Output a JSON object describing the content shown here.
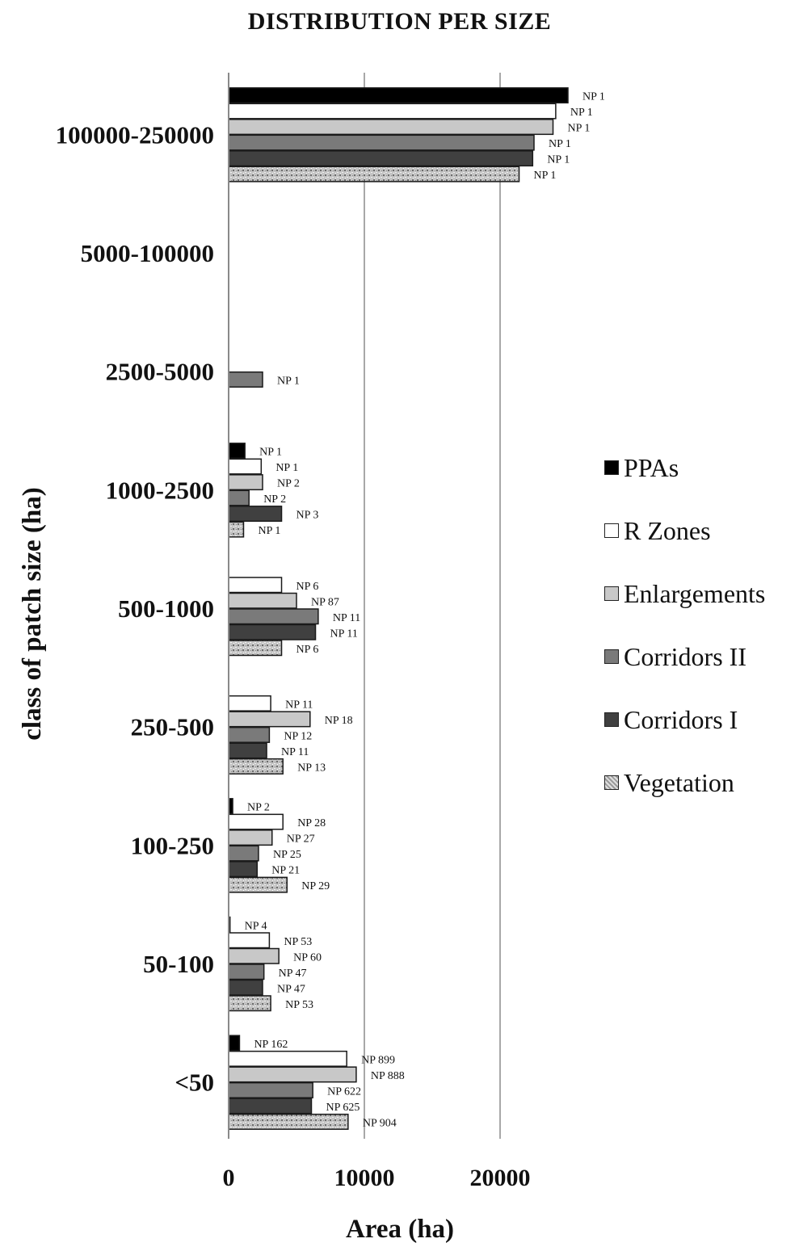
{
  "chart_data": {
    "type": "bar",
    "orientation": "horizontal",
    "title": "DISTRIBUTION PER SIZE",
    "xlabel": "Area  (ha)",
    "ylabel": "class of patch size (ha)",
    "xlim": [
      0,
      25000
    ],
    "xticks": [
      "0",
      "10000",
      "20000"
    ],
    "xtick_values": [
      0,
      10000,
      20000
    ],
    "grid": "vertical",
    "legend_position": "right",
    "categories": [
      "100000-250000",
      "5000-100000",
      "2500-5000",
      "1000-2500",
      "500-1000",
      "250-500",
      "100-250",
      "50-100",
      "<50"
    ],
    "series": [
      {
        "name": "PPAs",
        "color": "#000000",
        "pattern": "solid",
        "values": [
          25000,
          0,
          0,
          1200,
          0,
          0,
          300,
          100,
          800
        ],
        "labels": [
          "NP 1",
          "",
          "",
          "NP 1",
          "",
          "",
          "NP 2",
          "NP 4",
          "NP 162"
        ]
      },
      {
        "name": "R Zones",
        "color": "#ffffff",
        "pattern": "solid",
        "values": [
          24100,
          0,
          0,
          2400,
          3900,
          3100,
          4000,
          3000,
          8700
        ],
        "labels": [
          "NP 1",
          "",
          "",
          "NP 1",
          "NP 6",
          "NP 11",
          "NP 28",
          "NP 53",
          "NP 899"
        ]
      },
      {
        "name": "Enlargements",
        "color": "#c8c8c8",
        "pattern": "solid",
        "values": [
          23900,
          0,
          0,
          2500,
          5000,
          6000,
          3200,
          3700,
          9400
        ],
        "labels": [
          "NP 1",
          "",
          "",
          "NP 2",
          "NP 87",
          "NP 18",
          "NP 27",
          "NP 60",
          "NP 888"
        ]
      },
      {
        "name": "Corridors II",
        "color": "#7a7a7a",
        "pattern": "solid",
        "values": [
          22500,
          0,
          2500,
          1500,
          6600,
          3000,
          2200,
          2600,
          6200
        ],
        "labels": [
          "NP 1",
          "",
          "NP 1",
          "NP 2",
          "NP 11",
          "NP 12",
          "NP 25",
          "NP 47",
          "NP 622"
        ]
      },
      {
        "name": "Corridors I",
        "color": "#404040",
        "pattern": "solid",
        "values": [
          22400,
          0,
          0,
          3900,
          6400,
          2800,
          2100,
          2500,
          6100
        ],
        "labels": [
          "NP 1",
          "",
          "",
          "NP 3",
          "NP 11",
          "NP 11",
          "NP 21",
          "NP 47",
          "NP 625"
        ]
      },
      {
        "name": "Vegetation",
        "color": "#b4b4b4",
        "pattern": "speckled",
        "values": [
          21400,
          0,
          0,
          1100,
          3900,
          4000,
          4300,
          3100,
          8800
        ],
        "labels": [
          "NP 1",
          "",
          "",
          "NP 1",
          "NP 6",
          "NP 13",
          "NP 29",
          "NP 53",
          "NP 904"
        ]
      }
    ]
  }
}
